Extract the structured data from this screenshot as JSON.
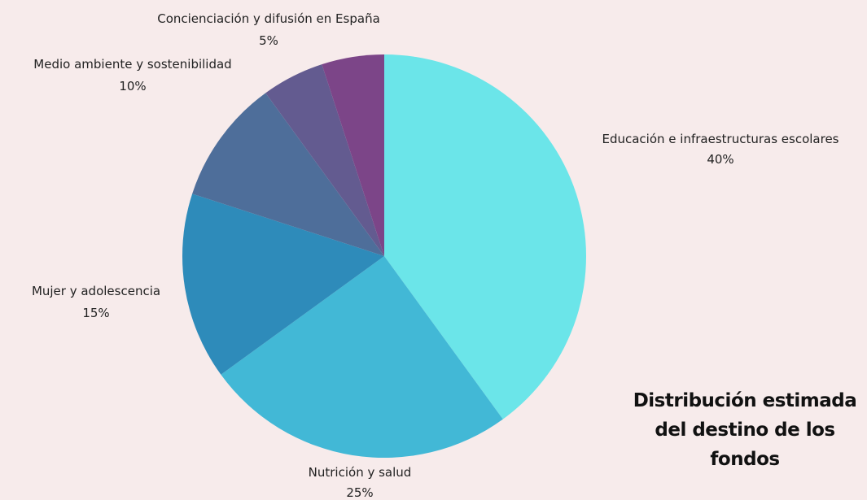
{
  "chart_data": {
    "type": "pie",
    "title_lines": [
      "Distribución estimada",
      "del destino de los",
      "fondos"
    ],
    "legend": "none",
    "slices": [
      {
        "label": "Educación e infraestructuras escolares",
        "value": 40,
        "value_label": "40%",
        "color": "#6be5e9"
      },
      {
        "label": "Nutrición y salud",
        "value": 25,
        "value_label": "25%",
        "color": "#42b8d6"
      },
      {
        "label": "Mujer y adolescencia",
        "value": 15,
        "value_label": "15%",
        "color": "#2e8bba"
      },
      {
        "label": "Medio ambiente y sostenibilidad",
        "value": 10,
        "value_label": "10%",
        "color": "#4e6e9a"
      },
      {
        "label": "Concienciación y difusión en España",
        "value": 5,
        "value_label": "5%",
        "color": "#635b90"
      },
      {
        "label": "",
        "value": 5,
        "value_label": "",
        "color": "#7c4588"
      }
    ]
  }
}
